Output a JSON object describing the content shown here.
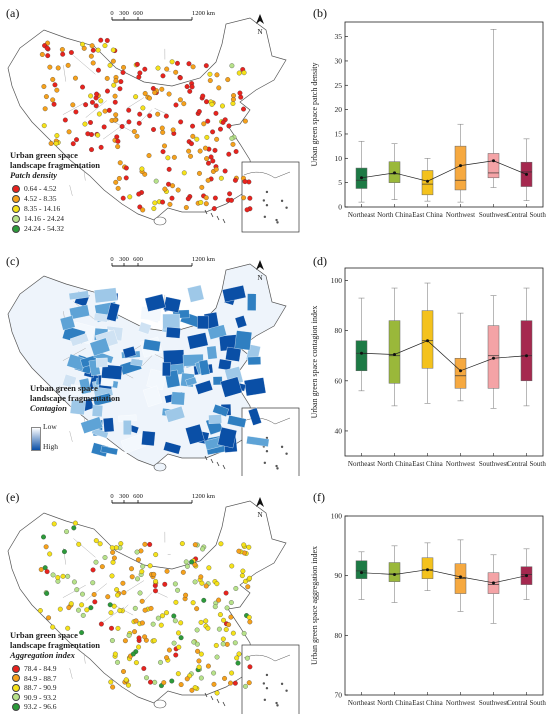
{
  "panels": {
    "a": {
      "label": "(a)"
    },
    "b": {
      "label": "(b)"
    },
    "c": {
      "label": "(c)"
    },
    "d": {
      "label": "(d)"
    },
    "e": {
      "label": "(e)"
    },
    "f": {
      "label": "(f)"
    }
  },
  "maps": [
    {
      "id": "a",
      "title_line1": "Urban green space",
      "title_line2": "landscape fragmentation",
      "metric": "Patch density",
      "scale": [
        "0",
        "300",
        "600",
        "1200 km"
      ],
      "north": "N",
      "legend": [
        {
          "label": "0.64 - 4.52",
          "color": "#e8231e"
        },
        {
          "label": "4.52 - 8.35",
          "color": "#f6a11b"
        },
        {
          "label": "8.35 - 14.16",
          "color": "#f5e21a"
        },
        {
          "label": "14.16 - 24.24",
          "color": "#b7e28a"
        },
        {
          "label": "24.24 - 54.32",
          "color": "#2c9a3a"
        }
      ]
    },
    {
      "id": "c",
      "title_line1": "Urban green space",
      "title_line2": "landscape fragmentation",
      "metric": "Contagion",
      "scale": [
        "0",
        "300",
        "600",
        "1200 km"
      ],
      "north": "N",
      "gradient": {
        "low": "Low",
        "high": "High",
        "low_color": "#ffffff",
        "high_color": "#0a4fa6"
      }
    },
    {
      "id": "e",
      "title_line1": "Urban green space",
      "title_line2": "landscape fragmentation",
      "metric": "Aggregation index",
      "scale": [
        "0",
        "300",
        "600",
        "1200 km"
      ],
      "north": "N",
      "legend": [
        {
          "label": "78.4 - 84.9",
          "color": "#e8231e"
        },
        {
          "label": "84.9 - 88.7",
          "color": "#f6a11b"
        },
        {
          "label": "88.7 - 90.9",
          "color": "#f5e21a"
        },
        {
          "label": "90.9 - 93.2",
          "color": "#b7e28a"
        },
        {
          "label": "93.2 - 96.6",
          "color": "#2c9a3a"
        }
      ]
    }
  ],
  "chart_data": [
    {
      "id": "b",
      "type": "box",
      "ylabel": "Urban green space patch density",
      "ylim": [
        0,
        38
      ],
      "yticks": [
        0,
        5,
        10,
        15,
        20,
        25,
        30,
        35
      ],
      "categories": [
        "Northeast",
        "North China",
        "East China",
        "Northwest",
        "Southwest",
        "Central South"
      ],
      "colors": [
        "#1d7a45",
        "#9ab83a",
        "#f4c21d",
        "#f6a940",
        "#f4a3a6",
        "#a5284f"
      ],
      "boxes": [
        {
          "min": 1.0,
          "q1": 3.8,
          "median": 5.5,
          "q3": 8.0,
          "max": 13.5
        },
        {
          "min": 1.5,
          "q1": 5.0,
          "median": 6.8,
          "q3": 9.3,
          "max": 13.0
        },
        {
          "min": 1.2,
          "q1": 2.5,
          "median": 4.7,
          "q3": 7.5,
          "max": 10.0
        },
        {
          "min": 1.0,
          "q1": 3.5,
          "median": 5.5,
          "q3": 12.5,
          "max": 17.0
        },
        {
          "min": 4.0,
          "q1": 6.0,
          "median": 7.0,
          "q3": 11.0,
          "max": 36.5
        },
        {
          "min": 1.3,
          "q1": 4.2,
          "median": 7.2,
          "q3": 9.2,
          "max": 14.0
        }
      ],
      "means": [
        6.0,
        7.0,
        5.3,
        8.5,
        9.5,
        6.7
      ]
    },
    {
      "id": "d",
      "type": "box",
      "ylabel": "Urban green space contagion index",
      "ylim": [
        30,
        105
      ],
      "yticks": [
        40,
        60,
        80,
        100
      ],
      "categories": [
        "Northeast",
        "North China",
        "East China",
        "Northwest",
        "Southwest",
        "Central South"
      ],
      "colors": [
        "#1d7a45",
        "#9ab83a",
        "#f4c21d",
        "#f6a940",
        "#f4a3a6",
        "#a5284f"
      ],
      "boxes": [
        {
          "min": 56,
          "q1": 64,
          "median": 71,
          "q3": 76,
          "max": 93
        },
        {
          "min": 50,
          "q1": 59,
          "median": 70,
          "q3": 84,
          "max": 97
        },
        {
          "min": 51,
          "q1": 65,
          "median": 76,
          "q3": 88,
          "max": 99
        },
        {
          "min": 52,
          "q1": 57,
          "median": 62,
          "q3": 69,
          "max": 87
        },
        {
          "min": 49,
          "q1": 57,
          "median": 70,
          "q3": 82,
          "max": 94
        },
        {
          "min": 50,
          "q1": 60,
          "median": 70,
          "q3": 84,
          "max": 97
        }
      ],
      "means": [
        71,
        70.5,
        76,
        64,
        69,
        70
      ]
    },
    {
      "id": "f",
      "type": "box",
      "ylabel": "Urban green space aggregation index",
      "ylim": [
        70,
        100
      ],
      "yticks": [
        70,
        80,
        90,
        100
      ],
      "categories": [
        "Northeast",
        "North China",
        "East China",
        "Northwest",
        "Southwest",
        "Central South"
      ],
      "colors": [
        "#1d7a45",
        "#9ab83a",
        "#f4c21d",
        "#f6a940",
        "#f4a3a6",
        "#a5284f"
      ],
      "boxes": [
        {
          "min": 86,
          "q1": 89.5,
          "median": 90.8,
          "q3": 92.5,
          "max": 94
        },
        {
          "min": 85.5,
          "q1": 89,
          "median": 90.3,
          "q3": 92.2,
          "max": 95
        },
        {
          "min": 87.5,
          "q1": 89.5,
          "median": 91,
          "q3": 93,
          "max": 95.5
        },
        {
          "min": 84,
          "q1": 87,
          "median": 89.5,
          "q3": 92,
          "max": 96
        },
        {
          "min": 82,
          "q1": 87,
          "median": 88.5,
          "q3": 90.5,
          "max": 93.5
        },
        {
          "min": 86,
          "q1": 88.5,
          "median": 90.2,
          "q3": 91.5,
          "max": 94.5
        }
      ],
      "means": [
        90.5,
        90.2,
        91.0,
        89.8,
        88.8,
        90.0
      ]
    }
  ]
}
